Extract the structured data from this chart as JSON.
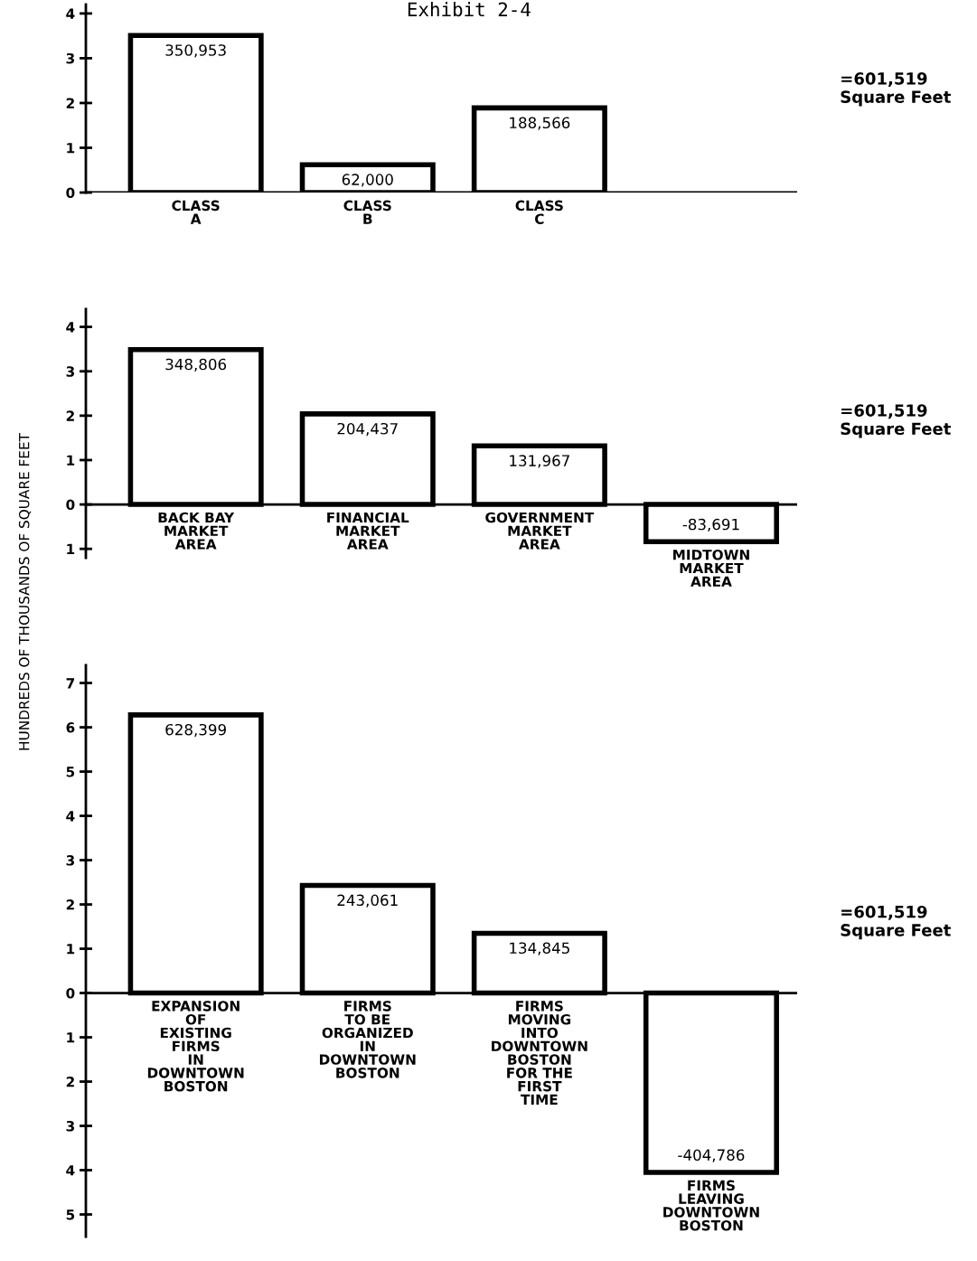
{
  "chart_data": [
    {
      "type": "bar",
      "title": "Exhibit 2-4",
      "categories": [
        "CLASS\nA",
        "CLASS\nB",
        "CLASS\nC"
      ],
      "color": "#000000",
      "values": [
        3.51,
        0.62,
        1.89
      ],
      "ylim": [
        0,
        4.2
      ],
      "yticks": [
        0,
        1,
        2,
        3,
        4
      ],
      "annotations": [
        {
          "text": "350,953",
          "x": "CLASS\nA",
          "y": 3.51
        },
        {
          "text": "62,000",
          "x": "CLASS\nB",
          "y": 0.62
        },
        {
          "text": "188,566",
          "x": "CLASS\nC",
          "y": 1.89
        },
        "=601,519\nSquare Feet"
      ]
    },
    {
      "type": "bar",
      "ylabel": "HUNDREDS OF THOUSANDS OF SQUARE FEET",
      "categories": [
        "BACK BAY\nMARKET\nAREA",
        "FINANCIAL\nMARKET\nAREA",
        "GOVERNMENT\nMARKET\nAREA",
        "MIDTOWN\nMARKET\nAREA"
      ],
      "color": "#000000",
      "values": [
        3.49,
        2.04,
        1.32,
        -0.84
      ],
      "ylim": [
        -1.2,
        4.4
      ],
      "yticks": [
        {
          "value": -1,
          "label": "1"
        },
        0,
        1,
        2,
        3,
        4
      ],
      "annotations": [
        {
          "text": "348,806",
          "x": "BACK BAY\nMARKET\nAREA",
          "y": 3.49
        },
        {
          "text": "204,437",
          "x": "FINANCIAL\nMARKET\nAREA",
          "y": 2.04
        },
        {
          "text": "131,967",
          "x": "GOVERNMENT\nMARKET\nAREA",
          "y": 1.32
        },
        {
          "text": "-83,691",
          "x": "MIDTOWN\nMARKET\nAREA",
          "y": -0.84
        },
        "=601,519\nSquare Feet"
      ]
    },
    {
      "type": "bar",
      "categories": [
        "EXPANSION\nOF\nEXISTING\nFIRMS\nIN\nDOWNTOWN\nBOSTON",
        "FIRMS\nTO BE\nORGANIZED\nIN\nDOWNTOWN\nBOSTON",
        "FIRMS\nMOVING\nINTO\nDOWNTOWN\nBOSTON\nFOR THE\nFIRST\nTIME",
        "FIRMS\nLEAVING\nDOWNTOWN\nBOSTON"
      ],
      "color": "#000000",
      "values": [
        6.28,
        2.43,
        1.35,
        -4.05
      ],
      "ylim": [
        -5.5,
        7.4
      ],
      "yticks": [
        {
          "value": -5,
          "label": "5"
        },
        {
          "value": -4,
          "label": "4"
        },
        {
          "value": -3,
          "label": "3"
        },
        {
          "value": -2,
          "label": "2"
        },
        {
          "value": -1,
          "label": "1"
        },
        0,
        1,
        2,
        3,
        4,
        5,
        6,
        7
      ],
      "annotations": [
        {
          "text": "628,399",
          "x": "EXPANSION\nOF\nEXISTING\nFIRMS\nIN\nDOWNTOWN\nBOSTON",
          "y": 6.28
        },
        {
          "text": "243,061",
          "x": "FIRMS\nTO BE\nORGANIZED\nIN\nDOWNTOWN\nBOSTON",
          "y": 2.43
        },
        {
          "text": "134,845",
          "x": "FIRMS\nMOVING\nINTO\nDOWNTOWN\nBOSTON\nFOR THE\nFIRST\nTIME",
          "y": 1.35
        },
        {
          "text": "-404,786",
          "x": "FIRMS\nLEAVING\nDOWNTOWN\nBOSTON",
          "y": -4.05
        },
        "=601,519\nSquare Feet"
      ]
    }
  ]
}
